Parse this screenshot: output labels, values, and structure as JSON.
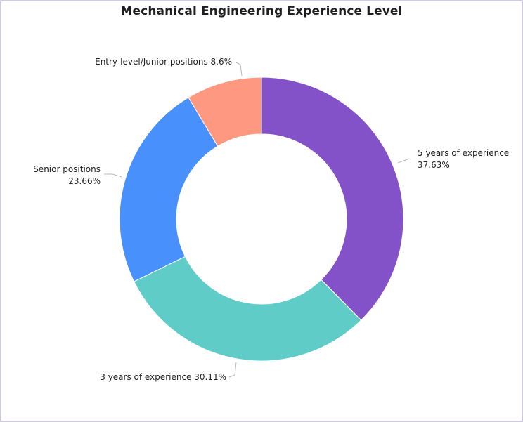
{
  "chart_data": {
    "type": "pie",
    "title": "Mechanical Engineering Experience Level",
    "donut": true,
    "slices": [
      {
        "label": "5 years of experience",
        "value": 37.63,
        "value_text": "37.63%",
        "color": "#8452c8"
      },
      {
        "label": "3 years of experience",
        "value": 30.11,
        "value_text": "30.11%",
        "color": "#5fccc8"
      },
      {
        "label": "Senior positions",
        "value": 23.66,
        "value_text": "23.66%",
        "color": "#4890fc"
      },
      {
        "label": "Entry-level/Junior positions",
        "value": 8.6,
        "value_text": "8.6%",
        "color": "#fe9880"
      }
    ]
  }
}
